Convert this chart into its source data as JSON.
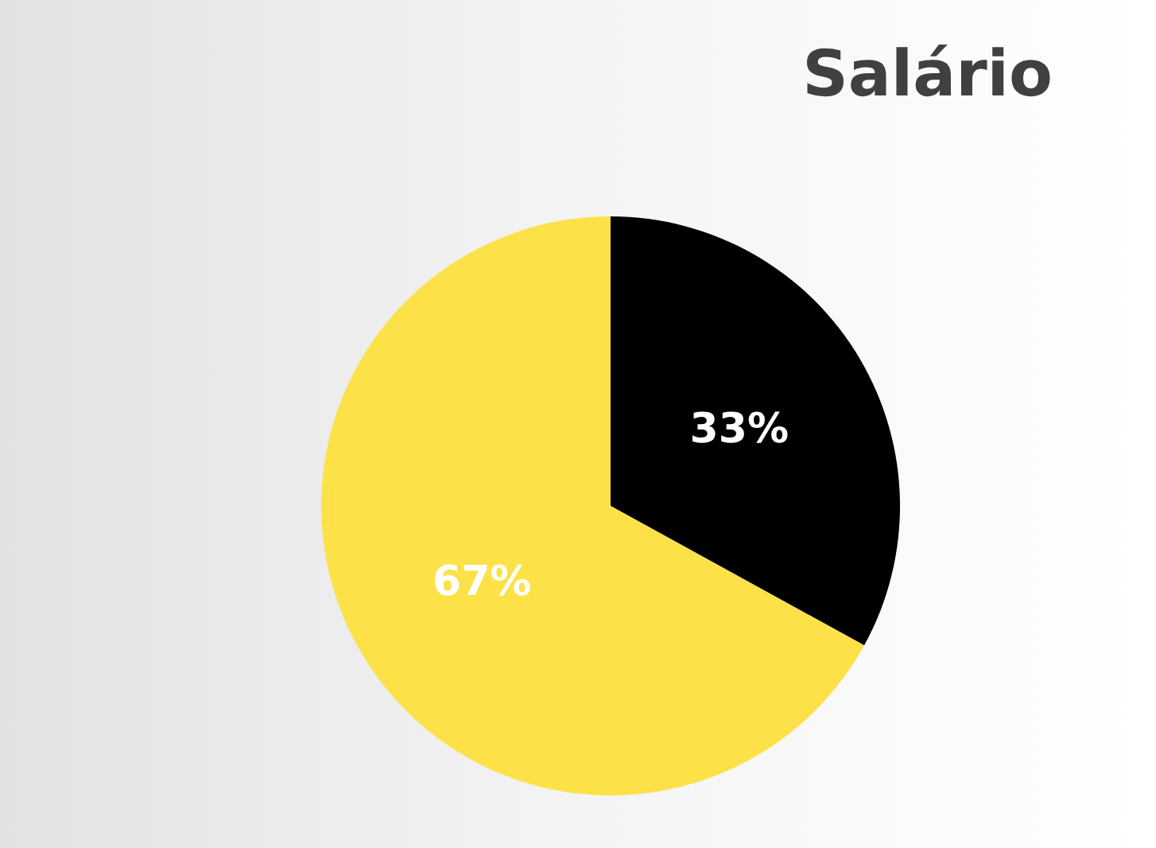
{
  "chart_data": {
    "type": "pie",
    "title": "Salário",
    "categories": [
      null,
      null
    ],
    "values": [
      33,
      67
    ],
    "colors": [
      "#000000",
      "#fce248"
    ],
    "value_labels": [
      "33%",
      "67%"
    ]
  }
}
